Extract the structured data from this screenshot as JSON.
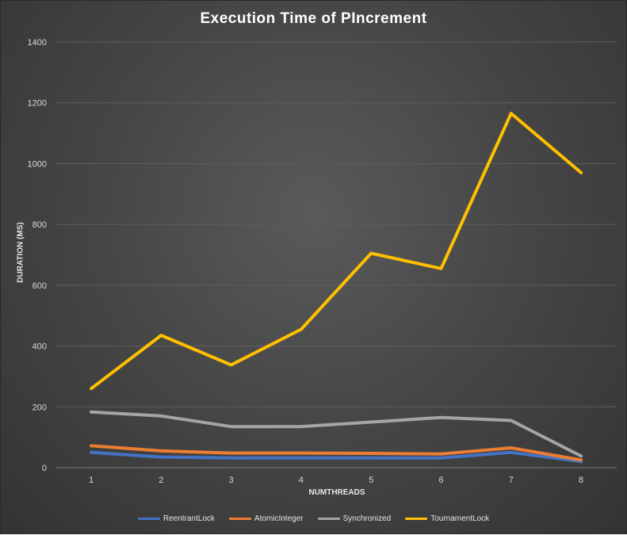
{
  "chart_data": {
    "type": "line",
    "title": "Execution Time of PIncrement",
    "xlabel": "NUMTHREADS",
    "ylabel": "DURATION (MS)",
    "categories": [
      "1",
      "2",
      "3",
      "4",
      "5",
      "6",
      "7",
      "8"
    ],
    "ylim": [
      0,
      1400
    ],
    "yticks": [
      "0",
      "200",
      "400",
      "600",
      "800",
      "1000",
      "1200",
      "1400"
    ],
    "grid": true,
    "legend_position": "bottom",
    "series": [
      {
        "name": "ReentrantLock",
        "color": "#4472C4",
        "values": [
          50,
          35,
          32,
          32,
          32,
          32,
          50,
          20
        ]
      },
      {
        "name": "AtomicInteger",
        "color": "#ED7D31",
        "values": [
          72,
          55,
          48,
          48,
          47,
          45,
          65,
          25
        ]
      },
      {
        "name": "Synchronized",
        "color": "#A5A5A5",
        "values": [
          183,
          170,
          135,
          135,
          150,
          165,
          155,
          38
        ]
      },
      {
        "name": "TournamentLock",
        "color": "#FFC000",
        "values": [
          260,
          435,
          338,
          455,
          705,
          655,
          1165,
          970
        ]
      }
    ]
  }
}
